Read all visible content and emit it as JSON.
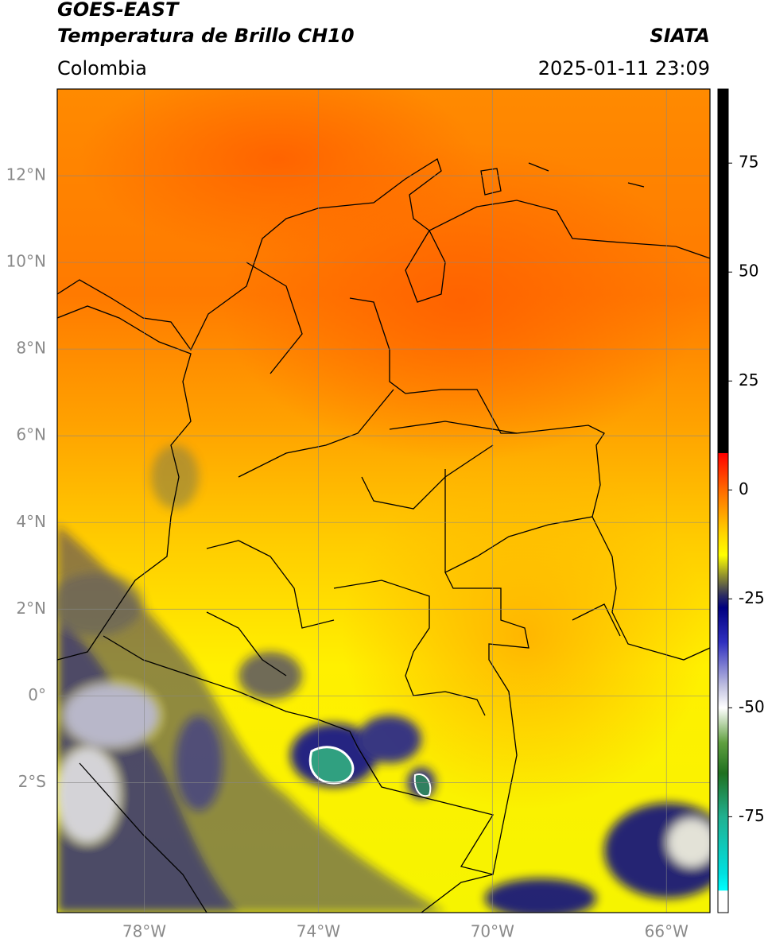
{
  "map": {
    "title": "GOES-EAST",
    "subtitle": "Temperatura de Brillo CH10",
    "source": "SIATA",
    "region": "Colombia",
    "datetime": "2025-01-11 23:09",
    "xlim": [
      -80,
      -65
    ],
    "ylim": [
      -5,
      14
    ],
    "xticks": [
      {
        "value": -78,
        "label": "78°W"
      },
      {
        "value": -74,
        "label": "74°W"
      },
      {
        "value": -70,
        "label": "70°W"
      },
      {
        "value": -66,
        "label": "66°W"
      }
    ],
    "yticks": [
      {
        "value": 12,
        "label": "12°N"
      },
      {
        "value": 10,
        "label": "10°N"
      },
      {
        "value": 8,
        "label": "8°N"
      },
      {
        "value": 6,
        "label": "6°N"
      },
      {
        "value": 4,
        "label": "4°N"
      },
      {
        "value": 2,
        "label": "2°N"
      },
      {
        "value": 0,
        "label": "0°"
      },
      {
        "value": -2,
        "label": "2°S"
      }
    ],
    "grid": true,
    "colorbar": {
      "lim": [
        -97,
        92
      ],
      "ticks": [
        75,
        50,
        25,
        0,
        -25,
        -50,
        -75
      ],
      "stops": [
        {
          "value": 92,
          "color": "#000000"
        },
        {
          "value": 8.5,
          "color": "#000000"
        },
        {
          "value": 8.4,
          "color": "#ff0000"
        },
        {
          "value": 0,
          "color": "#ff6a00"
        },
        {
          "value": -10,
          "color": "#ffd400"
        },
        {
          "value": -15,
          "color": "#ffff00"
        },
        {
          "value": -20,
          "color": "#8a8a30"
        },
        {
          "value": -24,
          "color": "#303060"
        },
        {
          "value": -27,
          "color": "#000080"
        },
        {
          "value": -35,
          "color": "#3030c0"
        },
        {
          "value": -45,
          "color": "#c0c0e0"
        },
        {
          "value": -50,
          "color": "#ffffff"
        },
        {
          "value": -58,
          "color": "#60a040"
        },
        {
          "value": -65,
          "color": "#207020"
        },
        {
          "value": -75,
          "color": "#20b090"
        },
        {
          "value": -88,
          "color": "#00e0e0"
        },
        {
          "value": -91.9,
          "color": "#00ffff"
        },
        {
          "value": -92,
          "color": "#ffffff"
        },
        {
          "value": -97,
          "color": "#ffffff"
        }
      ]
    }
  }
}
